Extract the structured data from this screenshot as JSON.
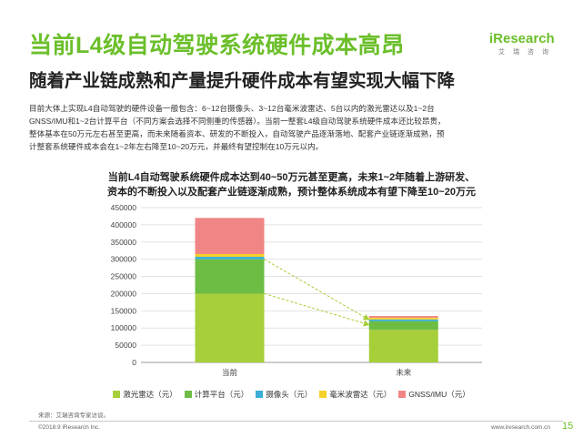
{
  "header": {
    "title": "当前L4级自动驾驶系统硬件成本高昂",
    "subtitle": "随着产业链成熟和产量提升硬件成本有望实现大幅下降",
    "logo_text": "iResearch",
    "logo_sub": "艾瑞咨询"
  },
  "body": {
    "line1": "目前大体上实现L4自动驾驶的硬件设备一般包含：6~12台摄像头、3~12台毫米波雷达、5台以内的激光雷达以及1~2台",
    "line2": "GNSS/IMU和1~2台计算平台（不同方案会选择不同侧重的传感器）。当前一整套L4级自动驾驶系统硬件成本还比较昂贵，",
    "line3": "整体基本在50万元左右甚至更高，而未来随着资本、研发的不断投入，自动驾驶产品逐渐落地、配套产业链逐渐成熟，预",
    "line4": "计整套系统硬件成本会在1~2年左右降至10~20万元，并最终有望控制在10万元以内。"
  },
  "chart_data": {
    "type": "bar",
    "stacked": true,
    "title_line1": "当前L4自动驾驶系统硬件成本达到40~50万元甚至更高，未来1~2年随着上游研发、",
    "title_line2": "资本的不断投入以及配套产业链逐渐成熟，预计整体系统成本有望下降至10~20万元",
    "categories": [
      "当前",
      "未来"
    ],
    "ylim": [
      0,
      450000
    ],
    "yticks": [
      0,
      50000,
      100000,
      150000,
      200000,
      250000,
      300000,
      350000,
      400000,
      450000
    ],
    "ytick_labels": [
      "0",
      "50000",
      "100000",
      "150000",
      "200000",
      "250000",
      "300000",
      "350000",
      "400000",
      "450000"
    ],
    "grid": true,
    "legend_position": "bottom",
    "series": [
      {
        "name": "激光雷达（元）",
        "color": "#a6cf3a",
        "values": [
          200000,
          95000
        ]
      },
      {
        "name": "计算平台（元）",
        "color": "#6dbd45",
        "values": [
          100000,
          25000
        ]
      },
      {
        "name": "摄像头（元）",
        "color": "#3aaed8",
        "values": [
          7000,
          5000
        ]
      },
      {
        "name": "毫米波雷达（元）",
        "color": "#f5d02a",
        "values": [
          8000,
          5000
        ]
      },
      {
        "name": "GNSS/IMU（元）",
        "color": "#f08585",
        "values": [
          105000,
          5000
        ]
      }
    ]
  },
  "footer": {
    "source": "来源：艾瑞咨询专家访谈。",
    "copyright": "©2018.9 iResearch Inc.",
    "website": "www.iresearch.com.cn",
    "page": "15"
  }
}
